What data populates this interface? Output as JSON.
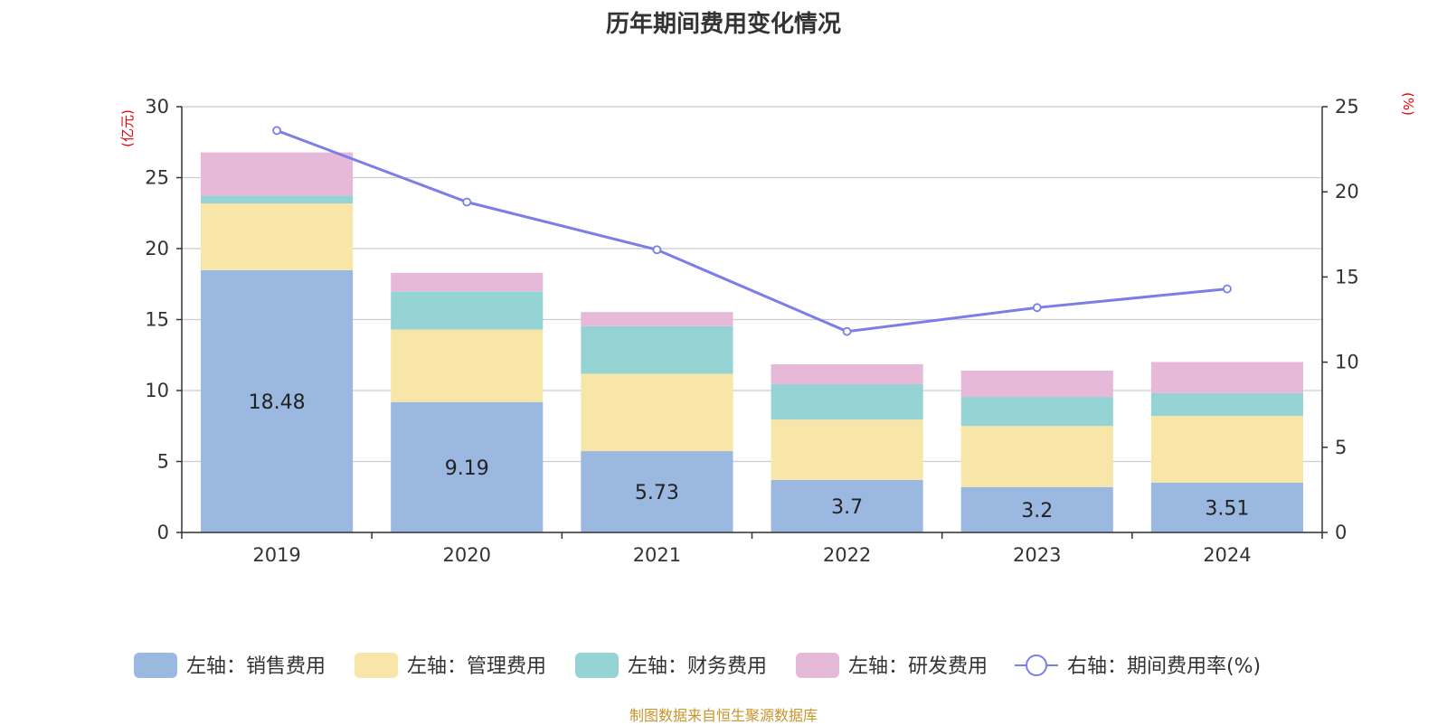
{
  "title": "历年期间费用变化情况",
  "source": "制图数据来自恒生聚源数据库",
  "colors": {
    "sales": "#9bb8e1",
    "admin": "#f7e6a8",
    "finance": "#96d3d4",
    "rnd": "#e7b9d8",
    "rate": "#7b7ee8",
    "grid": "#cccccc",
    "unit": "#e8000b"
  },
  "chart_data": {
    "type": "bar",
    "stacked": true,
    "categories": [
      "2019",
      "2020",
      "2021",
      "2022",
      "2023",
      "2024"
    ],
    "left_axis": {
      "unit": "(亿元)",
      "ylim": [
        0,
        30
      ],
      "ticks": [
        0,
        5,
        10,
        15,
        20,
        25,
        30
      ]
    },
    "right_axis": {
      "unit": "(%)",
      "ylim": [
        0,
        25
      ],
      "ticks": [
        0,
        5,
        10,
        15,
        20,
        25
      ]
    },
    "series": [
      {
        "key": "sales",
        "name": "左轴：销售费用",
        "axis": "left",
        "kind": "bar",
        "values": [
          18.48,
          9.19,
          5.73,
          3.7,
          3.2,
          3.51
        ],
        "labels": [
          "18.48",
          "9.19",
          "5.73",
          "3.7",
          "3.2",
          "3.51"
        ]
      },
      {
        "key": "admin",
        "name": "左轴：管理费用",
        "axis": "left",
        "kind": "bar",
        "values": [
          4.7,
          5.1,
          5.45,
          4.25,
          4.3,
          4.7
        ]
      },
      {
        "key": "finance",
        "name": "左轴：财务费用",
        "axis": "left",
        "kind": "bar",
        "values": [
          0.55,
          2.7,
          3.35,
          2.5,
          2.05,
          1.6
        ]
      },
      {
        "key": "rnd",
        "name": "左轴：研发费用",
        "axis": "left",
        "kind": "bar",
        "values": [
          3.05,
          1.3,
          1.0,
          1.4,
          1.85,
          2.2
        ]
      },
      {
        "key": "rate",
        "name": "右轴：期间费用率(%)",
        "axis": "right",
        "kind": "line",
        "values": [
          23.6,
          19.4,
          16.6,
          11.8,
          13.2,
          14.3
        ]
      }
    ],
    "legend_position": "bottom",
    "grid": true
  }
}
